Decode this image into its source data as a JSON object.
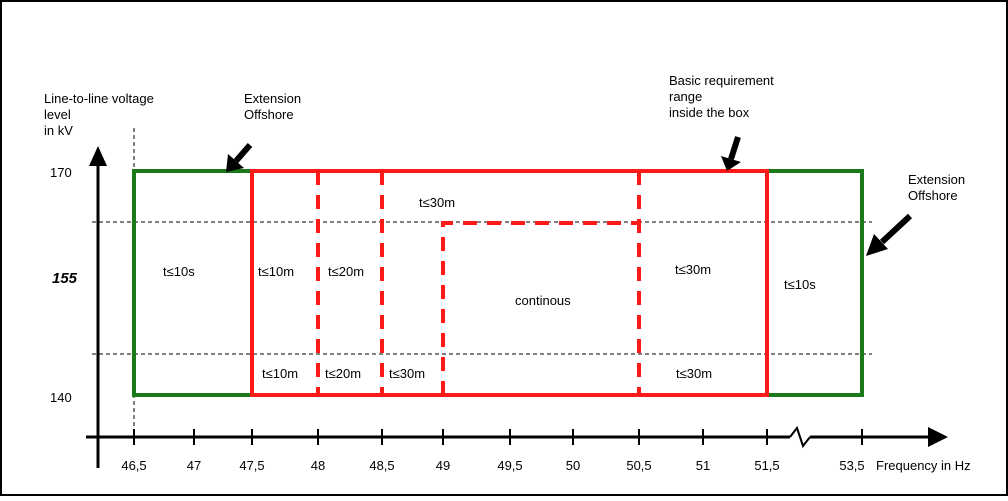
{
  "diagram": {
    "y_axis_title": [
      "Line-to-line voltage",
      "level",
      "in kV"
    ],
    "y_ticks": [
      {
        "label": "170"
      },
      {
        "label": "155",
        "emphasis": true
      },
      {
        "label": "140"
      }
    ],
    "x_ticks": [
      "46,5",
      "47",
      "47,5",
      "48",
      "48,5",
      "49",
      "49,5",
      "50",
      "50,5",
      "51",
      "51,5",
      "53,5"
    ],
    "x_axis_title": "Frequency in Hz",
    "annotations": {
      "extension_left": [
        "Extension",
        "Offshore"
      ],
      "extension_right": [
        "Extension",
        "Offshore"
      ],
      "basic_requirement": [
        "Basic requirement",
        "range",
        "inside the box"
      ]
    },
    "regions": {
      "left_green_time": "t≤10s",
      "right_green_time": "t≤10s",
      "top_band": "t≤30m",
      "col_47_5_48_mid": "t≤10m",
      "col_48_48_5_mid": "t≤20m",
      "col_50_5_51_5_mid": "t≤30m",
      "center": "continous",
      "bottom_47_5_48": "t≤10m",
      "bottom_48_48_5": "t≤20m",
      "bottom_48_5_49": "t≤30m",
      "bottom_50_5_51_5": "t≤30m"
    },
    "colors": {
      "extension": "#1a7a1a",
      "basic": "#ff1a1a",
      "axis": "#000000"
    }
  }
}
